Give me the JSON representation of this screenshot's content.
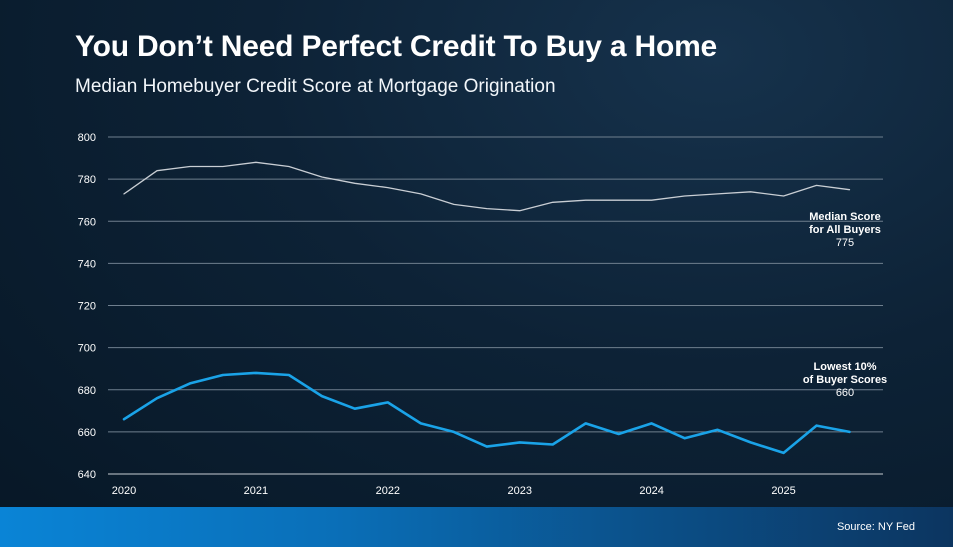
{
  "title": "You Don’t Need Perfect Credit To Buy a Home",
  "subtitle": "Median Homebuyer Credit Score at Mortgage Origination",
  "source": "Source: NY Fed",
  "chart_data": {
    "type": "line",
    "ylim": [
      640,
      800
    ],
    "yticks": [
      640,
      660,
      680,
      700,
      720,
      740,
      760,
      780,
      800
    ],
    "xlim": [
      2020,
      2025.625
    ],
    "xticks": [
      "2020",
      "2021",
      "2022",
      "2023",
      "2024",
      "2025"
    ],
    "grid": true,
    "x": [
      2020,
      2020.25,
      2020.5,
      2020.75,
      2021,
      2021.25,
      2021.5,
      2021.75,
      2022,
      2022.25,
      2022.5,
      2022.75,
      2023,
      2023.25,
      2023.5,
      2023.75,
      2024,
      2024.25,
      2024.5,
      2024.75,
      2025,
      2025.25,
      2025.5
    ],
    "series": [
      {
        "label_lines": [
          "Median Score",
          "for All Buyers"
        ],
        "value_label": "775",
        "color": "#c9ced4",
        "values": [
          773,
          784,
          786,
          786,
          788,
          786,
          781,
          778,
          776,
          773,
          768,
          766,
          765,
          769,
          770,
          770,
          770,
          772,
          773,
          774,
          772,
          777,
          775
        ]
      },
      {
        "label_lines": [
          "Lowest 10%",
          "of Buyer Scores"
        ],
        "value_label": "660",
        "color": "#1aa3e8",
        "values": [
          666,
          676,
          683,
          687,
          688,
          687,
          677,
          671,
          674,
          664,
          660,
          653,
          655,
          654,
          664,
          659,
          664,
          657,
          661,
          655,
          650,
          663,
          660
        ]
      }
    ]
  }
}
